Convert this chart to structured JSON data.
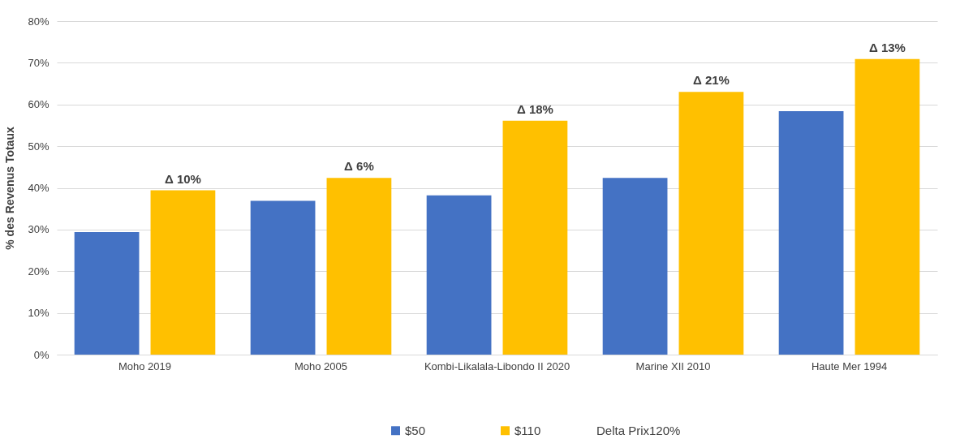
{
  "chart_data": {
    "type": "bar",
    "ylabel": "% des Revenus Totaux",
    "categories": [
      "Moho 2019",
      "Moho 2005",
      "Kombi-Likalala-Libondo II 2020",
      "Marine XII 2010",
      "Haute Mer 1994"
    ],
    "series": [
      {
        "name": "$50",
        "color": "#4472c4",
        "values": [
          29.4,
          36.9,
          38.2,
          42.4,
          58.4
        ]
      },
      {
        "name": "$110",
        "color": "#ffc000",
        "values": [
          39.4,
          42.4,
          56.1,
          63.0,
          70.9
        ]
      }
    ],
    "ylim": [
      0,
      80
    ],
    "yticks": [
      {
        "value": 0,
        "label": "0%"
      },
      {
        "value": 10,
        "label": "10%"
      },
      {
        "value": 20,
        "label": "20%"
      },
      {
        "value": 30,
        "label": "30%"
      },
      {
        "value": 40,
        "label": "40%"
      },
      {
        "value": 50,
        "label": "50%"
      },
      {
        "value": 60,
        "label": "60%"
      },
      {
        "value": 70,
        "label": "70%"
      },
      {
        "value": 80,
        "label": "80%"
      }
    ],
    "grid": "y",
    "legend": "bottom",
    "annotations": [
      "Δ 10%",
      "Δ 6%",
      "Δ 18%",
      "Δ 21%",
      "Δ 13%",
      "Delta Prix120%"
    ]
  }
}
